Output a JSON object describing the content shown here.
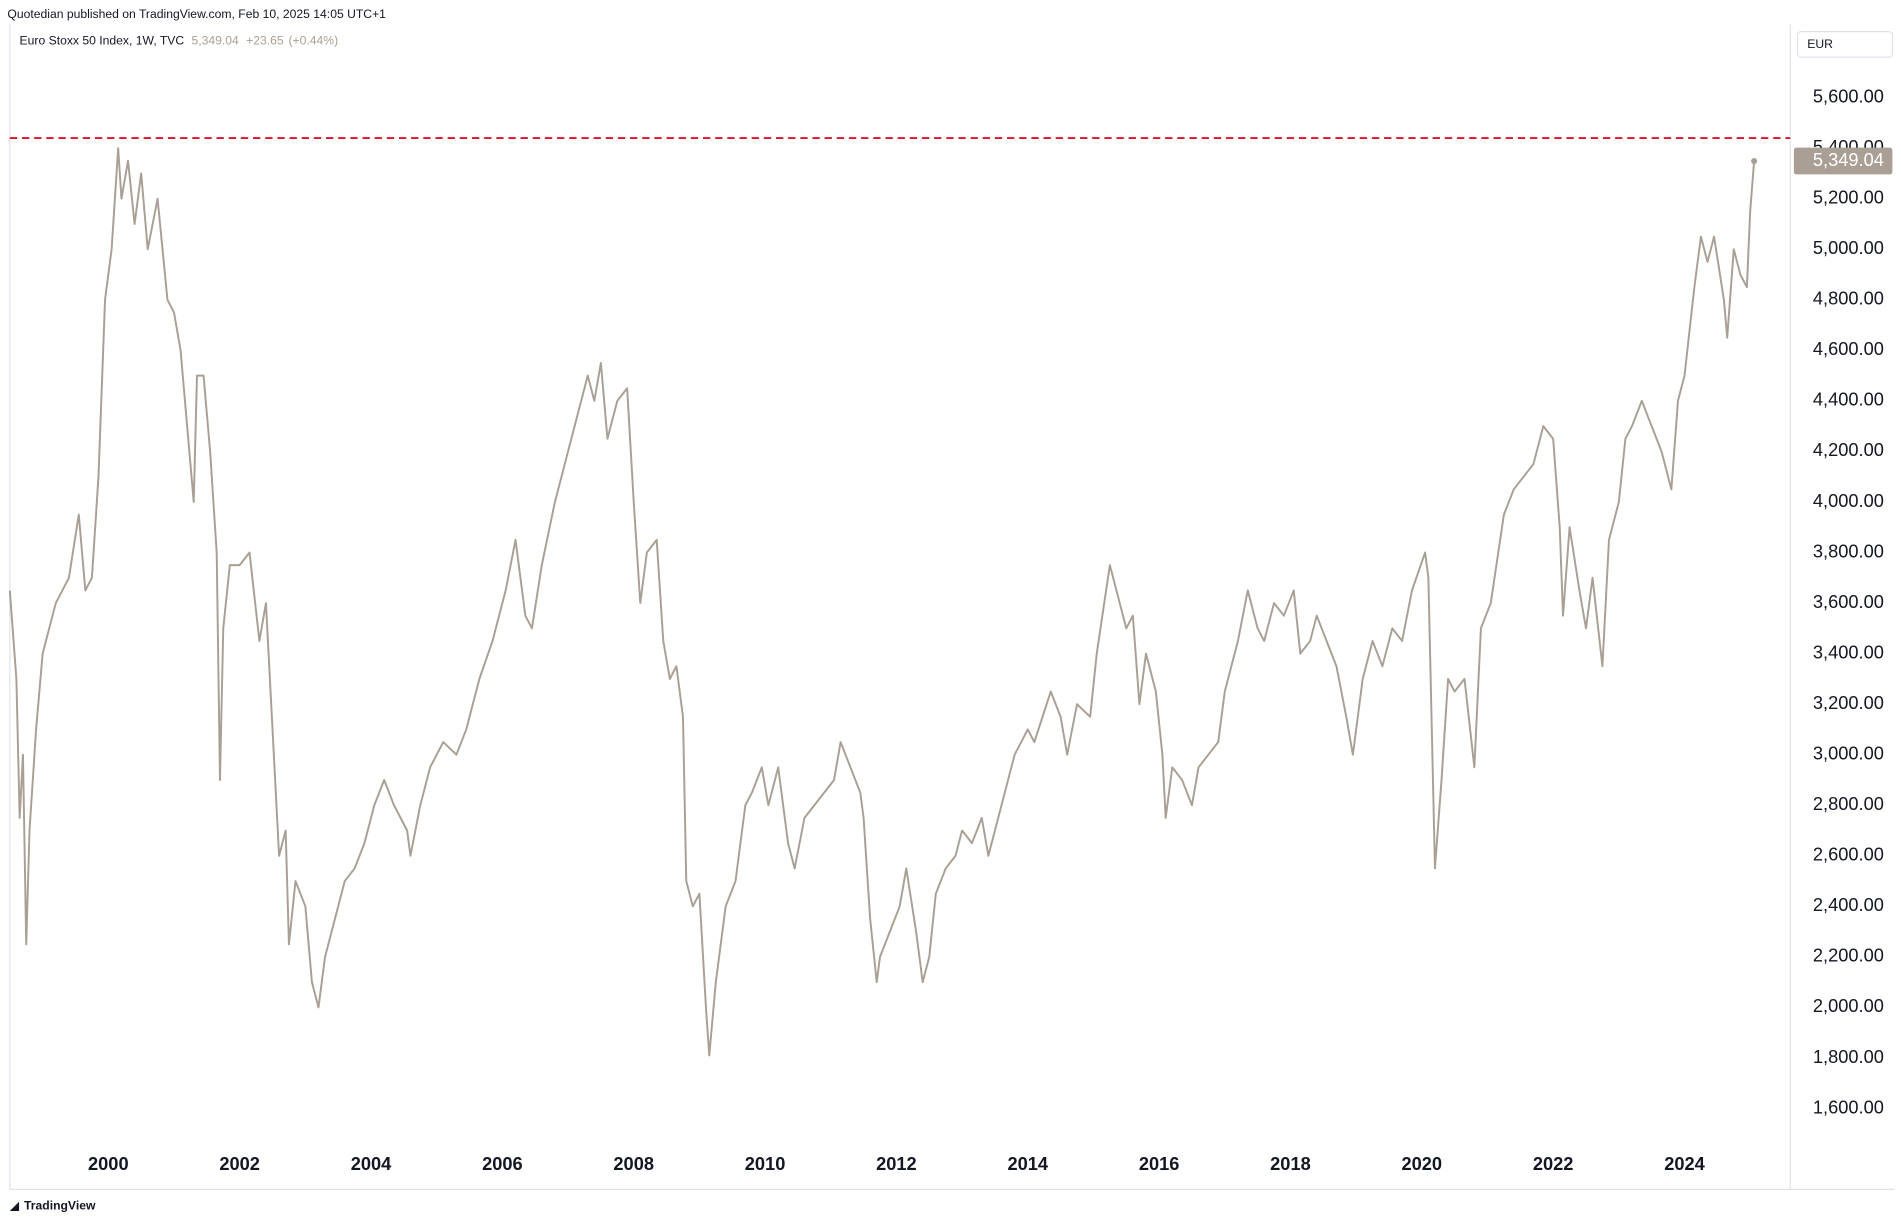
{
  "header": {
    "publisher": "Quotedian published on TradingView.com, Feb 10, 2025 14:05 UTC+1",
    "last": "5,349.04",
    "change": "+23.65",
    "change_pct": "(+0.44%)",
    "currency": "EUR",
    "footer": "TradingView"
  },
  "chart_data": {
    "type": "line",
    "title": "Euro Stoxx 50 Index, 1W, TVC",
    "color": "#aa9f94",
    "x": [
      1998.5,
      1998.6,
      1998.65,
      1998.7,
      1998.75,
      1998.8,
      1998.9,
      1999.0,
      1999.2,
      1999.4,
      1999.55,
      1999.65,
      1999.75,
      1999.85,
      1999.95,
      2000.05,
      2000.15,
      2000.2,
      2000.3,
      2000.4,
      2000.5,
      2000.6,
      2000.75,
      2000.9,
      2001.0,
      2001.1,
      2001.2,
      2001.3,
      2001.35,
      2001.45,
      2001.55,
      2001.65,
      2001.7,
      2001.75,
      2001.85,
      2002.0,
      2002.15,
      2002.3,
      2002.4,
      2002.5,
      2002.6,
      2002.7,
      2002.75,
      2002.85,
      2003.0,
      2003.1,
      2003.2,
      2003.3,
      2003.45,
      2003.6,
      2003.75,
      2003.9,
      2004.05,
      2004.2,
      2004.35,
      2004.55,
      2004.6,
      2004.75,
      2004.9,
      2005.1,
      2005.3,
      2005.45,
      2005.65,
      2005.85,
      2006.05,
      2006.2,
      2006.35,
      2006.45,
      2006.6,
      2006.8,
      2006.95,
      2007.1,
      2007.3,
      2007.4,
      2007.5,
      2007.6,
      2007.75,
      2007.9,
      2008.0,
      2008.1,
      2008.2,
      2008.35,
      2008.45,
      2008.55,
      2008.65,
      2008.75,
      2008.8,
      2008.9,
      2009.0,
      2009.1,
      2009.15,
      2009.25,
      2009.4,
      2009.55,
      2009.7,
      2009.8,
      2009.95,
      2010.05,
      2010.2,
      2010.35,
      2010.45,
      2010.6,
      2010.75,
      2010.9,
      2011.05,
      2011.15,
      2011.3,
      2011.45,
      2011.5,
      2011.6,
      2011.7,
      2011.75,
      2011.9,
      2012.05,
      2012.15,
      2012.3,
      2012.4,
      2012.5,
      2012.6,
      2012.75,
      2012.9,
      2013.0,
      2013.15,
      2013.3,
      2013.4,
      2013.5,
      2013.65,
      2013.8,
      2014.0,
      2014.1,
      2014.35,
      2014.5,
      2014.6,
      2014.75,
      2014.95,
      2015.05,
      2015.25,
      2015.35,
      2015.5,
      2015.6,
      2015.7,
      2015.8,
      2015.95,
      2016.05,
      2016.1,
      2016.2,
      2016.35,
      2016.5,
      2016.6,
      2016.75,
      2016.9,
      2017.0,
      2017.2,
      2017.35,
      2017.5,
      2017.6,
      2017.75,
      2017.9,
      2018.05,
      2018.15,
      2018.3,
      2018.4,
      2018.55,
      2018.7,
      2018.85,
      2018.95,
      2019.1,
      2019.25,
      2019.4,
      2019.55,
      2019.7,
      2019.85,
      2020.05,
      2020.1,
      2020.2,
      2020.3,
      2020.4,
      2020.5,
      2020.65,
      2020.8,
      2020.9,
      2021.05,
      2021.25,
      2021.4,
      2021.55,
      2021.7,
      2021.85,
      2022.0,
      2022.1,
      2022.15,
      2022.25,
      2022.4,
      2022.5,
      2022.6,
      2022.75,
      2022.85,
      2023.0,
      2023.1,
      2023.2,
      2023.35,
      2023.5,
      2023.65,
      2023.8,
      2023.9,
      2024.0,
      2024.15,
      2024.25,
      2024.35,
      2024.45,
      2024.6,
      2024.65,
      2024.75,
      2024.85,
      2024.95,
      2025.0,
      2025.06
    ],
    "values": [
      3650,
      3300,
      2750,
      3000,
      2250,
      2700,
      3100,
      3400,
      3600,
      3700,
      3950,
      3650,
      3700,
      4100,
      4800,
      5000,
      5400,
      5200,
      5350,
      5100,
      5300,
      5000,
      5200,
      4800,
      4750,
      4600,
      4300,
      4000,
      4500,
      4500,
      4200,
      3800,
      2900,
      3500,
      3750,
      3750,
      3800,
      3450,
      3600,
      3100,
      2600,
      2700,
      2250,
      2500,
      2400,
      2100,
      2000,
      2200,
      2350,
      2500,
      2550,
      2650,
      2800,
      2900,
      2800,
      2700,
      2600,
      2800,
      2950,
      3050,
      3000,
      3100,
      3300,
      3450,
      3650,
      3850,
      3550,
      3500,
      3750,
      4000,
      4150,
      4300,
      4500,
      4400,
      4550,
      4250,
      4400,
      4450,
      4000,
      3600,
      3800,
      3850,
      3450,
      3300,
      3350,
      3150,
      2500,
      2400,
      2450,
      2000,
      1810,
      2100,
      2400,
      2500,
      2800,
      2850,
      2950,
      2800,
      2950,
      2650,
      2550,
      2750,
      2800,
      2850,
      2900,
      3050,
      2950,
      2850,
      2750,
      2350,
      2100,
      2200,
      2300,
      2400,
      2550,
      2300,
      2100,
      2200,
      2450,
      2550,
      2600,
      2700,
      2650,
      2750,
      2600,
      2700,
      2850,
      3000,
      3100,
      3050,
      3250,
      3150,
      3000,
      3200,
      3150,
      3400,
      3750,
      3650,
      3500,
      3550,
      3200,
      3400,
      3250,
      3000,
      2750,
      2950,
      2900,
      2800,
      2950,
      3000,
      3050,
      3250,
      3450,
      3650,
      3500,
      3450,
      3600,
      3550,
      3650,
      3400,
      3450,
      3550,
      3450,
      3350,
      3150,
      3000,
      3300,
      3450,
      3350,
      3500,
      3450,
      3650,
      3800,
      3700,
      2550,
      2900,
      3300,
      3250,
      3300,
      2950,
      3500,
      3600,
      3950,
      4050,
      4100,
      4150,
      4300,
      4250,
      3900,
      3550,
      3900,
      3650,
      3500,
      3700,
      3350,
      3850,
      4000,
      4250,
      4300,
      4400,
      4300,
      4200,
      4050,
      4400,
      4500,
      4850,
      5050,
      4950,
      5050,
      4800,
      4650,
      5000,
      4900,
      4850,
      5150,
      5349.04
    ],
    "last_label": "5,349.04",
    "label_fill": "#aa9f94",
    "hline": {
      "value": 5440,
      "color": "#e0102a"
    },
    "xlim": [
      1998.5,
      2025.61
    ],
    "ylim": [
      1280,
      5890
    ],
    "xticks": [
      2000,
      2002,
      2004,
      2006,
      2008,
      2010,
      2012,
      2014,
      2016,
      2018,
      2020,
      2022,
      2024
    ],
    "yticks": [
      {
        "value": 1600,
        "label": "1,600.00"
      },
      {
        "value": 1800,
        "label": "1,800.00"
      },
      {
        "value": 2000,
        "label": "2,000.00"
      },
      {
        "value": 2200,
        "label": "2,200.00"
      },
      {
        "value": 2400,
        "label": "2,400.00"
      },
      {
        "value": 2600,
        "label": "2,600.00"
      },
      {
        "value": 2800,
        "label": "2,800.00"
      },
      {
        "value": 3000,
        "label": "3,000.00"
      },
      {
        "value": 3200,
        "label": "3,200.00"
      },
      {
        "value": 3400,
        "label": "3,400.00"
      },
      {
        "value": 3600,
        "label": "3,600.00"
      },
      {
        "value": 3800,
        "label": "3,800.00"
      },
      {
        "value": 4000,
        "label": "4,000.00"
      },
      {
        "value": 4200,
        "label": "4,200.00"
      },
      {
        "value": 4400,
        "label": "4,400.00"
      },
      {
        "value": 4600,
        "label": "4,600.00"
      },
      {
        "value": 4800,
        "label": "4,800.00"
      },
      {
        "value": 5000,
        "label": "5,000.00"
      },
      {
        "value": 5200,
        "label": "5,200.00"
      },
      {
        "value": 5400,
        "label": "5,400.00"
      },
      {
        "value": 5600,
        "label": "5,600.00"
      }
    ],
    "grid": false
  }
}
